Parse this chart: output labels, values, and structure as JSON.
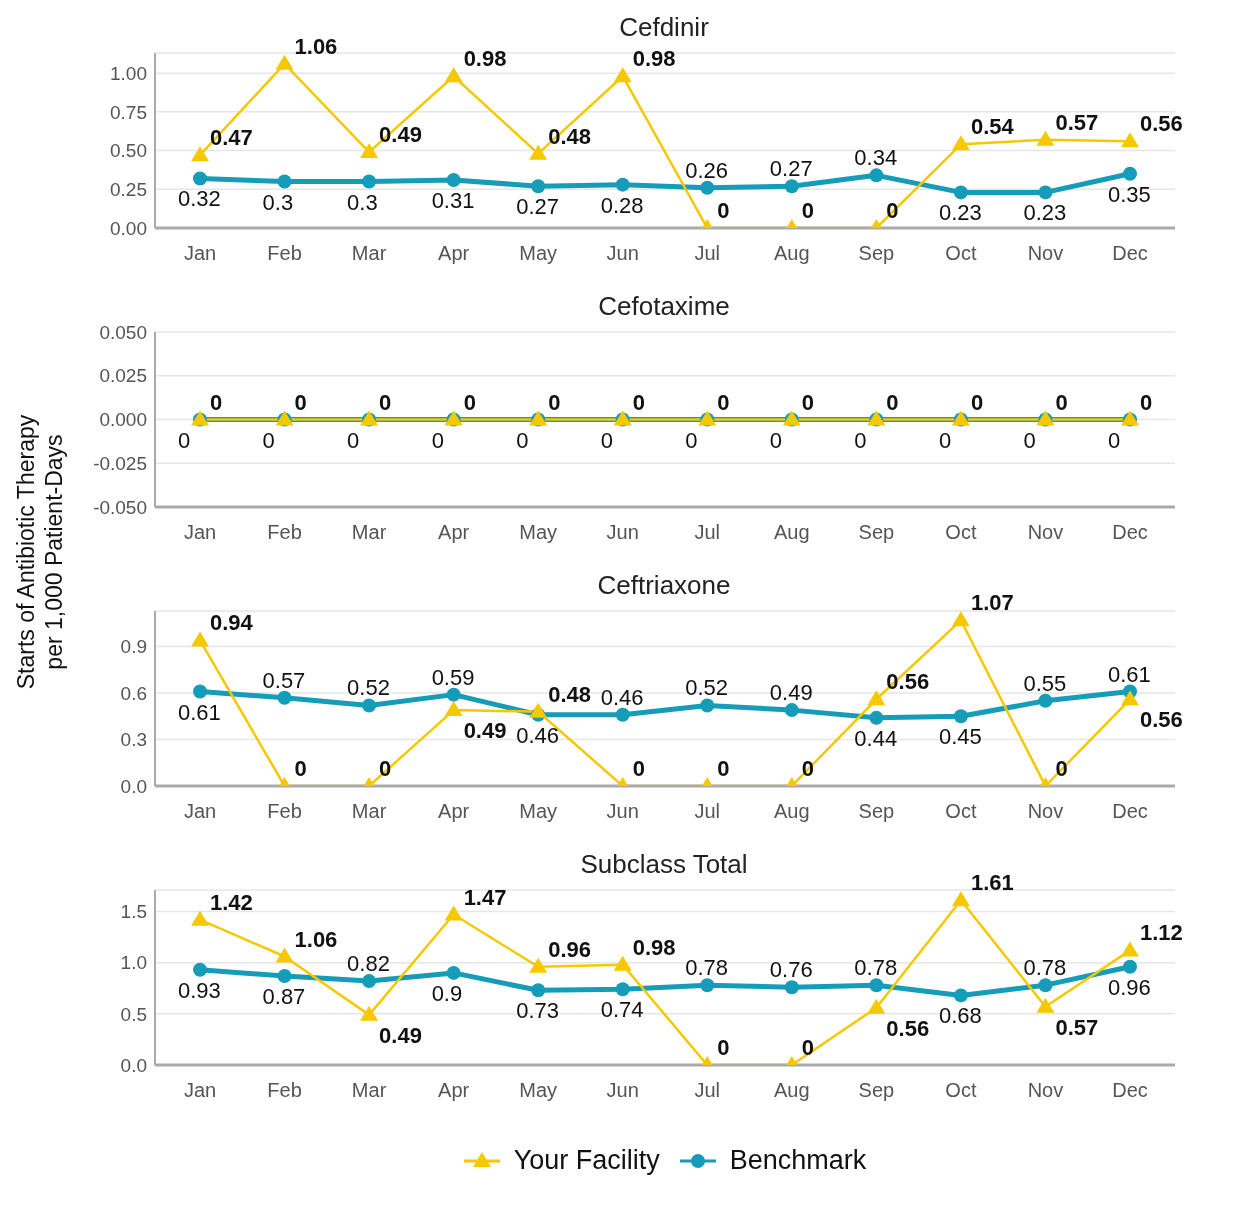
{
  "chart_data": [
    {
      "type": "line",
      "title": "Cefdinir",
      "categories": [
        "Jan",
        "Feb",
        "Mar",
        "Apr",
        "May",
        "Jun",
        "Jul",
        "Aug",
        "Sep",
        "Oct",
        "Nov",
        "Dec"
      ],
      "series": [
        {
          "color": "#f5c800",
          "marker": "triangle",
          "values": [
            0.47,
            1.06,
            0.49,
            0.98,
            0.48,
            0.98,
            0,
            0,
            0,
            0.54,
            0.57,
            0.56
          ]
        },
        {
          "color": "#159cb8",
          "marker": "circle",
          "values": [
            0.32,
            0.3,
            0.3,
            0.31,
            0.27,
            0.28,
            0.26,
            0.27,
            0.34,
            0.23,
            0.23,
            0.35
          ]
        }
      ],
      "ylim": [
        0,
        1.13
      ],
      "yticks": [
        {
          "value": 0,
          "label": "0.00"
        },
        {
          "value": 0.25,
          "label": "0.25"
        },
        {
          "value": 0.5,
          "label": "0.50"
        },
        {
          "value": 0.75,
          "label": "0.75"
        },
        {
          "value": 1,
          "label": "1.00"
        }
      ],
      "grid": "y",
      "data_labels": true
    },
    {
      "type": "line",
      "title": "Cefotaxime",
      "ylabel": "Starts of Antibiotic Therapy\nper 1,000 Patient-Days",
      "categories": [
        "Jan",
        "Feb",
        "Mar",
        "Apr",
        "May",
        "Jun",
        "Jul",
        "Aug",
        "Sep",
        "Oct",
        "Nov",
        "Dec"
      ],
      "series": [
        {
          "color": "#f5c800",
          "marker": "triangle",
          "values": [
            0,
            0,
            0,
            0,
            0,
            0,
            0,
            0,
            0,
            0,
            0,
            0
          ]
        },
        {
          "color": "#159cb8",
          "marker": "circle",
          "values": [
            0,
            0,
            0,
            0,
            0,
            0,
            0,
            0,
            0,
            0,
            0,
            0
          ]
        }
      ],
      "ylim": [
        -0.05,
        0.05
      ],
      "yticks": [
        {
          "value": -0.05,
          "label": "-0.050"
        },
        {
          "value": -0.025,
          "label": "-0.025"
        },
        {
          "value": 0,
          "label": "0.000"
        },
        {
          "value": 0.025,
          "label": "0.025"
        },
        {
          "value": 0.05,
          "label": "0.050"
        }
      ],
      "grid": "y",
      "data_labels": true
    },
    {
      "type": "line",
      "title": "Ceftriaxone",
      "categories": [
        "Jan",
        "Feb",
        "Mar",
        "Apr",
        "May",
        "Jun",
        "Jul",
        "Aug",
        "Sep",
        "Oct",
        "Nov",
        "Dec"
      ],
      "series": [
        {
          "color": "#f5c800",
          "marker": "triangle",
          "values": [
            0.94,
            0,
            0,
            0.49,
            0.48,
            0,
            0,
            0,
            0.56,
            1.07,
            0,
            0.56
          ]
        },
        {
          "color": "#159cb8",
          "marker": "circle",
          "values": [
            0.61,
            0.57,
            0.52,
            0.59,
            0.46,
            0.46,
            0.52,
            0.49,
            0.44,
            0.45,
            0.55,
            0.61
          ]
        }
      ],
      "ylim": [
        0,
        1.13
      ],
      "yticks": [
        {
          "value": 0,
          "label": "0.0"
        },
        {
          "value": 0.3,
          "label": "0.3"
        },
        {
          "value": 0.6,
          "label": "0.6"
        },
        {
          "value": 0.9,
          "label": "0.9"
        }
      ],
      "grid": "y",
      "data_labels": true
    },
    {
      "type": "line",
      "title": "Subclass Total",
      "categories": [
        "Jan",
        "Feb",
        "Mar",
        "Apr",
        "May",
        "Jun",
        "Jul",
        "Aug",
        "Sep",
        "Oct",
        "Nov",
        "Dec"
      ],
      "series": [
        {
          "name": "Your Facility",
          "color": "#f5c800",
          "marker": "triangle",
          "values": [
            1.42,
            1.06,
            0.49,
            1.47,
            0.96,
            0.98,
            0,
            0,
            0.56,
            1.61,
            0.57,
            1.12
          ]
        },
        {
          "name": "Benchmark",
          "color": "#159cb8",
          "marker": "circle",
          "values": [
            0.93,
            0.87,
            0.82,
            0.9,
            0.73,
            0.74,
            0.78,
            0.76,
            0.78,
            0.68,
            0.78,
            0.96
          ]
        }
      ],
      "ylim": [
        0,
        1.71
      ],
      "yticks": [
        {
          "value": 0,
          "label": "0.0"
        },
        {
          "value": 0.5,
          "label": "0.5"
        },
        {
          "value": 1,
          "label": "1.0"
        },
        {
          "value": 1.5,
          "label": "1.5"
        }
      ],
      "grid": "y",
      "data_labels": true,
      "legend": "bottom"
    }
  ]
}
